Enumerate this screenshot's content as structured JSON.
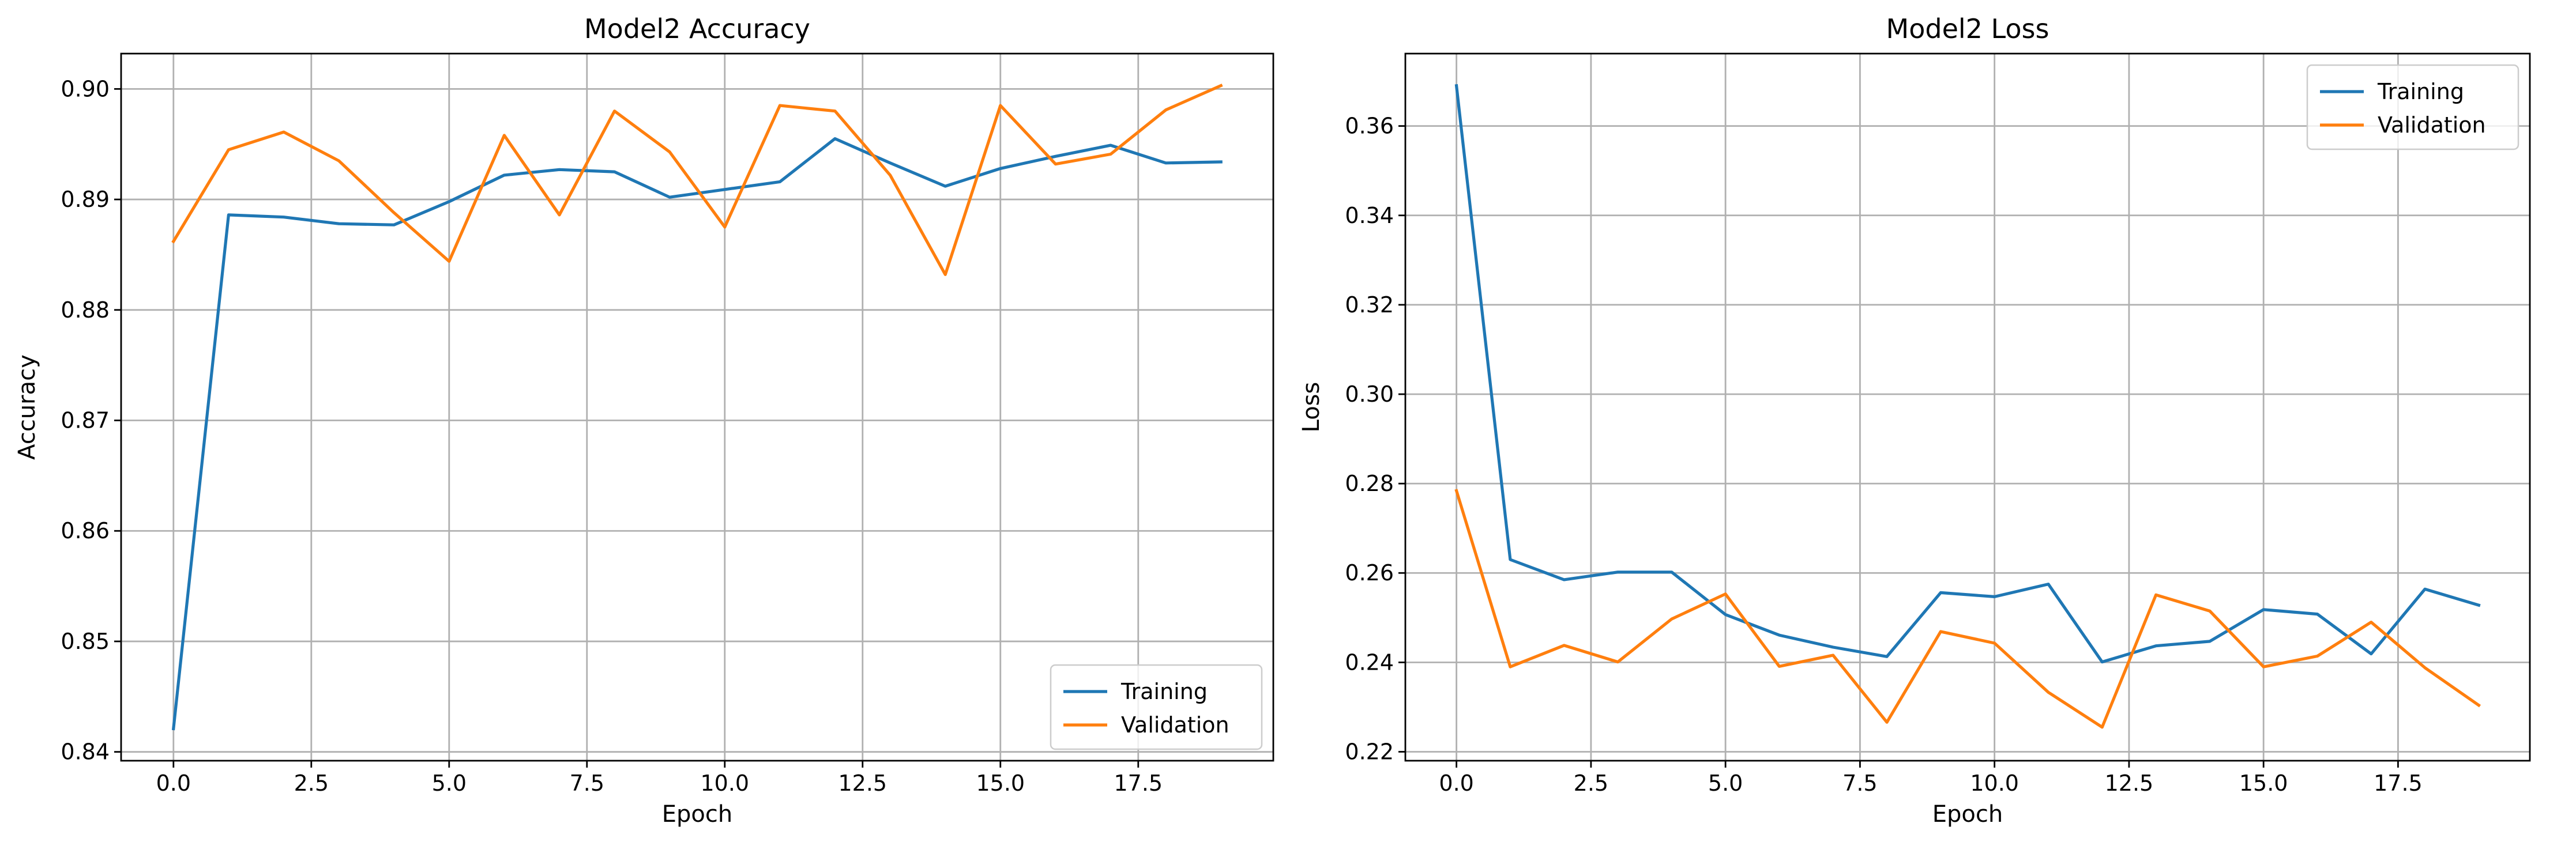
{
  "chart_data": [
    {
      "type": "line",
      "title": "Model2 Accuracy",
      "xlabel": "Epoch",
      "ylabel": "Accuracy",
      "xlim": [
        -0.95,
        19.95
      ],
      "ylim": [
        0.8392,
        0.9032
      ],
      "xticks": [
        0.0,
        2.5,
        5.0,
        7.5,
        10.0,
        12.5,
        15.0,
        17.5
      ],
      "xtick_labels": [
        "0.0",
        "2.5",
        "5.0",
        "7.5",
        "10.0",
        "12.5",
        "15.0",
        "17.5"
      ],
      "yticks": [
        0.84,
        0.85,
        0.86,
        0.87,
        0.88,
        0.89,
        0.9
      ],
      "ytick_labels": [
        "0.84",
        "0.85",
        "0.86",
        "0.87",
        "0.88",
        "0.89",
        "0.90"
      ],
      "grid": true,
      "legend": "lower-right",
      "x": [
        0,
        1,
        2,
        3,
        4,
        5,
        6,
        7,
        8,
        9,
        10,
        11,
        12,
        13,
        14,
        15,
        16,
        17,
        18,
        19
      ],
      "series": [
        {
          "name": "Training",
          "color": "#1f77b4",
          "values": [
            0.8421,
            0.8886,
            0.8884,
            0.8878,
            0.8877,
            0.8898,
            0.8922,
            0.8927,
            0.8925,
            0.8902,
            0.8909,
            0.8916,
            0.8955,
            0.8933,
            0.8912,
            0.8928,
            0.8939,
            0.8949,
            0.8933,
            0.8934
          ]
        },
        {
          "name": "Validation",
          "color": "#ff7f0e",
          "values": [
            0.8862,
            0.8945,
            0.8961,
            0.8935,
            0.8888,
            0.8844,
            0.8958,
            0.8886,
            0.898,
            0.8943,
            0.8875,
            0.8985,
            0.898,
            0.8922,
            0.8832,
            0.8985,
            0.8932,
            0.8941,
            0.8981,
            0.9003
          ]
        }
      ]
    },
    {
      "type": "line",
      "title": "Model2 Loss",
      "xlabel": "Epoch",
      "ylabel": "Loss",
      "xlim": [
        -0.95,
        19.95
      ],
      "ylim": [
        0.218,
        0.3762
      ],
      "xticks": [
        0.0,
        2.5,
        5.0,
        7.5,
        10.0,
        12.5,
        15.0,
        17.5
      ],
      "xtick_labels": [
        "0.0",
        "2.5",
        "5.0",
        "7.5",
        "10.0",
        "12.5",
        "15.0",
        "17.5"
      ],
      "yticks": [
        0.22,
        0.24,
        0.26,
        0.28,
        0.3,
        0.32,
        0.34,
        0.36
      ],
      "ytick_labels": [
        "0.22",
        "0.24",
        "0.26",
        "0.28",
        "0.30",
        "0.32",
        "0.34",
        "0.36"
      ],
      "grid": true,
      "legend": "upper-right",
      "x": [
        0,
        1,
        2,
        3,
        4,
        5,
        6,
        7,
        8,
        9,
        10,
        11,
        12,
        13,
        14,
        15,
        16,
        17,
        18,
        19
      ],
      "series": [
        {
          "name": "Training",
          "color": "#1f77b4",
          "values": [
            0.369,
            0.263,
            0.2585,
            0.2602,
            0.2602,
            0.2507,
            0.2461,
            0.2434,
            0.2413,
            0.2556,
            0.2547,
            0.2575,
            0.2401,
            0.2437,
            0.2447,
            0.2518,
            0.2508,
            0.2419,
            0.2564,
            0.2528
          ]
        },
        {
          "name": "Validation",
          "color": "#ff7f0e",
          "values": [
            0.2784,
            0.239,
            0.2438,
            0.2401,
            0.2497,
            0.2553,
            0.2391,
            0.2416,
            0.2266,
            0.2469,
            0.2443,
            0.2333,
            0.2255,
            0.2551,
            0.2515,
            0.239,
            0.2414,
            0.249,
            0.2388,
            0.2304
          ]
        }
      ]
    }
  ]
}
